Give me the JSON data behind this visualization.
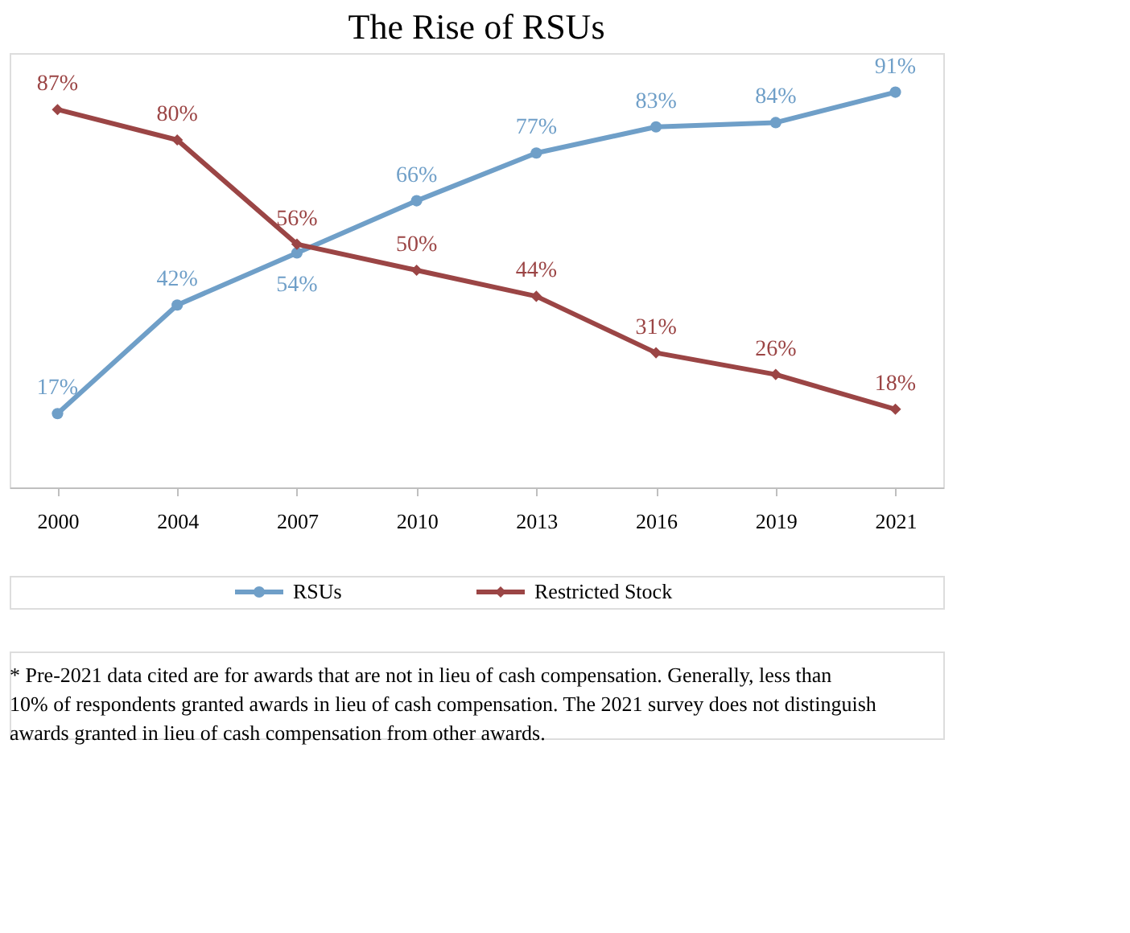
{
  "chart_data": {
    "type": "line",
    "title": "The Rise of RSUs",
    "categories": [
      "2000",
      "2004",
      "2007",
      "2010",
      "2013",
      "2016",
      "2019",
      "2021"
    ],
    "series": [
      {
        "name": "RSUs",
        "color": "#6f9fc8",
        "marker": "circle",
        "values": [
          17,
          42,
          54,
          66,
          77,
          83,
          84,
          91
        ],
        "value_labels": [
          "17%",
          "42%",
          "54%",
          "66%",
          "77%",
          "83%",
          "84%",
          "91%"
        ]
      },
      {
        "name": "Restricted Stock",
        "color": "#9b4545",
        "marker": "diamond",
        "values": [
          87,
          80,
          56,
          50,
          44,
          31,
          26,
          18
        ],
        "value_labels": [
          "87%",
          "80%",
          "56%",
          "50%",
          "44%",
          "31%",
          "26%",
          "18%"
        ]
      }
    ],
    "legend": "bottom",
    "tick_labels": "x",
    "annotations": [
      "* Pre-2021 data cited are for awards that are not in lieu of cash compensation. Generally, less than 10% of respondents granted awards in lieu of cash compensation. The 2021 survey does not distinguish awards granted in lieu of cash compensation from other awards."
    ]
  }
}
